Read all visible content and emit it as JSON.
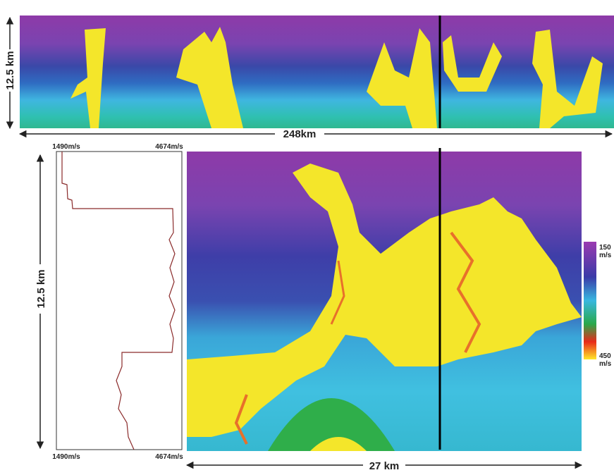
{
  "top_panel": {
    "depth_label": "12.5 km",
    "width_label": "248km"
  },
  "log_panel": {
    "top_min_label": "1490m/s",
    "top_max_label": "4674m/s",
    "depth_label": "12.5 km",
    "bottom_min_label": "1490m/s",
    "bottom_max_label": "4674m/s"
  },
  "main_panel": {
    "width_label": "27 km"
  },
  "colorbar": {
    "top_value": "150",
    "top_unit": "m/s",
    "bottom_value": "450",
    "bottom_unit": "m/s"
  }
}
